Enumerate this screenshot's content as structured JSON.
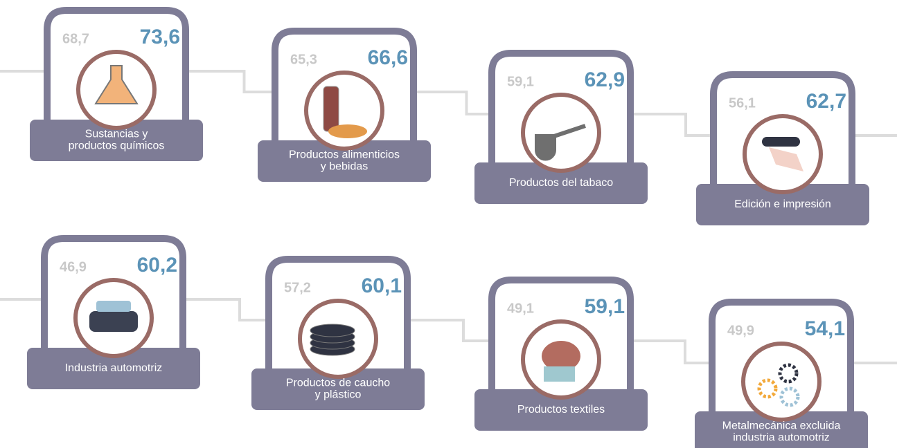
{
  "cards": [
    {
      "previous": "68,7",
      "current": "73,6",
      "label": [
        "Sustancias y",
        "productos químicos"
      ]
    },
    {
      "previous": "65,3",
      "current": "66,6",
      "label": [
        "Productos alimenticios",
        "y bebidas"
      ]
    },
    {
      "previous": "59,1",
      "current": "62,9",
      "label": [
        "Productos del tabaco"
      ]
    },
    {
      "previous": "56,1",
      "current": "62,7",
      "label": [
        "Edición e impresión"
      ]
    },
    {
      "previous": "46,9",
      "current": "60,2",
      "label": [
        "Industria automotriz"
      ]
    },
    {
      "previous": "57,2",
      "current": "60,1",
      "label": [
        "Productos de caucho",
        "y plástico"
      ]
    },
    {
      "previous": "49,1",
      "current": "59,1",
      "label": [
        "Productos textiles"
      ]
    },
    {
      "previous": "49,9",
      "current": "54,1",
      "label": [
        "Metalmecánica excluida",
        "industria automotriz"
      ]
    }
  ]
}
